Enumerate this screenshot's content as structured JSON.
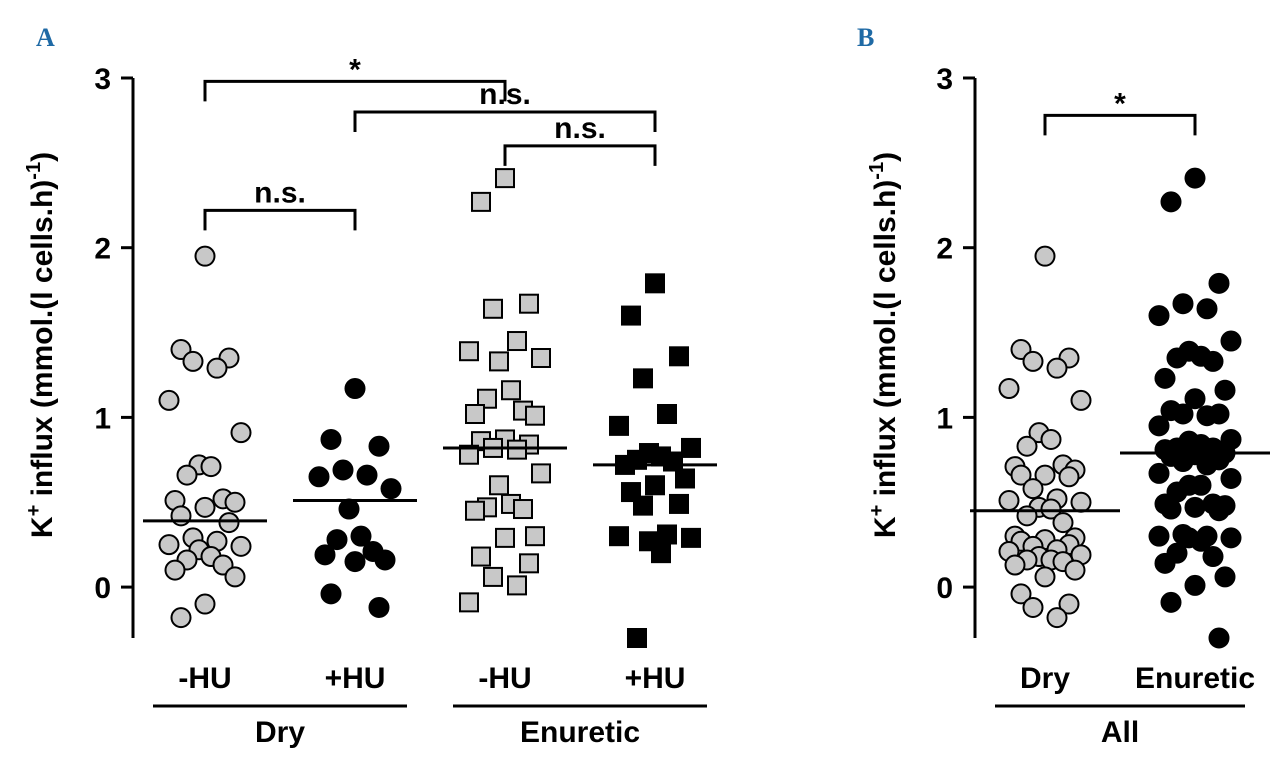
{
  "colors": {
    "panel_label": "#1f6aa5",
    "light_fill": "#c8c8c8",
    "dark_fill": "#000000",
    "stroke": "#000000"
  },
  "chart_data": [
    {
      "panel": "A",
      "type": "scatter",
      "ylabel_main": "K",
      "ylabel_sup": "+",
      "ylabel_rest": " influx (mmol.(l cells.h)",
      "ylabel_exp": "-1",
      "ylabel_close": ")",
      "ylim": [
        -0.3,
        3
      ],
      "yticks": [
        "0",
        "1",
        "2",
        "3"
      ],
      "categories": [
        "-HU",
        "+HU",
        "-HU",
        "+HU"
      ],
      "groups": [
        {
          "label": "Dry",
          "span": [
            0,
            1
          ]
        },
        {
          "label": "Enuretic",
          "span": [
            2,
            3
          ]
        }
      ],
      "series": [
        {
          "name": "Dry -HU",
          "marker": "circle",
          "fill": "light",
          "median": 0.39,
          "values": [
            1.95,
            1.4,
            1.35,
            1.33,
            1.29,
            1.1,
            0.91,
            0.72,
            0.71,
            0.66,
            0.52,
            0.51,
            0.5,
            0.47,
            0.42,
            0.38,
            0.29,
            0.27,
            0.25,
            0.24,
            0.22,
            0.18,
            0.16,
            0.13,
            0.1,
            0.06,
            -0.1,
            -0.18
          ]
        },
        {
          "name": "Dry +HU",
          "marker": "circle",
          "fill": "dark",
          "median": 0.51,
          "values": [
            1.17,
            0.87,
            0.83,
            0.69,
            0.66,
            0.65,
            0.58,
            0.46,
            0.3,
            0.28,
            0.21,
            0.19,
            0.16,
            0.15,
            -0.04,
            -0.12
          ]
        },
        {
          "name": "Enuretic -HU",
          "marker": "square",
          "fill": "light",
          "median": 0.82,
          "values": [
            2.41,
            2.27,
            1.67,
            1.64,
            1.45,
            1.39,
            1.35,
            1.33,
            1.16,
            1.11,
            1.04,
            1.02,
            1.01,
            0.87,
            0.86,
            0.84,
            0.82,
            0.81,
            0.78,
            0.67,
            0.6,
            0.49,
            0.47,
            0.46,
            0.45,
            0.3,
            0.29,
            0.18,
            0.14,
            0.06,
            0.01,
            -0.09
          ]
        },
        {
          "name": "Enuretic +HU",
          "marker": "square",
          "fill": "dark",
          "median": 0.72,
          "values": [
            1.79,
            1.6,
            1.36,
            1.23,
            1.02,
            0.95,
            0.82,
            0.79,
            0.77,
            0.75,
            0.74,
            0.72,
            0.64,
            0.6,
            0.56,
            0.49,
            0.48,
            0.31,
            0.3,
            0.29,
            0.27,
            0.2,
            -0.3
          ]
        }
      ],
      "comparisons": [
        {
          "from": 0,
          "to": 2,
          "y": 2.98,
          "label": "*"
        },
        {
          "from": 1,
          "to": 3,
          "y": 2.8,
          "label": "n.s."
        },
        {
          "from": 2,
          "to": 3,
          "y": 2.6,
          "label": "n.s."
        },
        {
          "from": 0,
          "to": 1,
          "y": 2.22,
          "label": "n.s."
        }
      ]
    },
    {
      "panel": "B",
      "type": "scatter",
      "ylabel_main": "K",
      "ylabel_sup": "+",
      "ylabel_rest": " influx (mmol.(l cells.h)",
      "ylabel_exp": "-1",
      "ylabel_close": ")",
      "ylim": [
        -0.3,
        3
      ],
      "yticks": [
        "0",
        "1",
        "2",
        "3"
      ],
      "categories": [
        "Dry",
        "Enuretic"
      ],
      "groups": [
        {
          "label": "All",
          "span": [
            0,
            1
          ]
        }
      ],
      "series": [
        {
          "name": "Dry",
          "marker": "circle",
          "fill": "light",
          "median": 0.45,
          "values": [
            1.95,
            1.4,
            1.35,
            1.33,
            1.29,
            1.17,
            1.1,
            0.91,
            0.87,
            0.83,
            0.72,
            0.71,
            0.69,
            0.66,
            0.66,
            0.65,
            0.58,
            0.52,
            0.51,
            0.5,
            0.47,
            0.46,
            0.42,
            0.38,
            0.3,
            0.29,
            0.28,
            0.27,
            0.25,
            0.24,
            0.22,
            0.21,
            0.19,
            0.18,
            0.16,
            0.16,
            0.15,
            0.13,
            0.1,
            0.06,
            -0.04,
            -0.1,
            -0.12,
            -0.18
          ]
        },
        {
          "name": "Enuretic",
          "marker": "circle",
          "fill": "dark",
          "median": 0.79,
          "values": [
            2.41,
            2.27,
            1.79,
            1.67,
            1.64,
            1.6,
            1.45,
            1.39,
            1.36,
            1.35,
            1.33,
            1.23,
            1.16,
            1.11,
            1.04,
            1.02,
            1.02,
            1.01,
            0.95,
            0.87,
            0.86,
            0.84,
            0.82,
            0.82,
            0.81,
            0.79,
            0.78,
            0.77,
            0.75,
            0.74,
            0.72,
            0.67,
            0.64,
            0.6,
            0.6,
            0.56,
            0.49,
            0.49,
            0.48,
            0.47,
            0.46,
            0.45,
            0.31,
            0.3,
            0.3,
            0.29,
            0.29,
            0.27,
            0.2,
            0.18,
            0.14,
            0.06,
            0.01,
            -0.09,
            -0.3
          ]
        }
      ],
      "comparisons": [
        {
          "from": 0,
          "to": 1,
          "y": 2.78,
          "label": "*"
        }
      ]
    }
  ]
}
